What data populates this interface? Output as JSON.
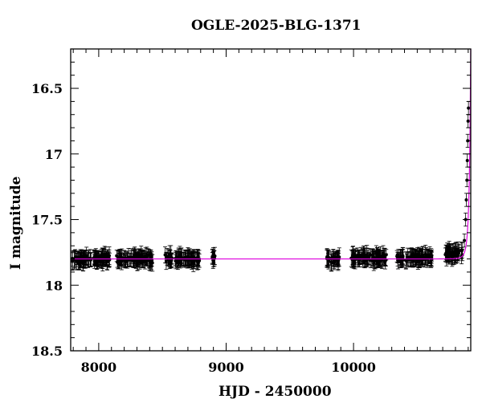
{
  "chart_data": {
    "type": "scatter",
    "title": "OGLE-2025-BLG-1371",
    "xlabel": "HJD - 2450000",
    "ylabel": "I magnitude",
    "xlim": [
      7780,
      10920
    ],
    "ylim": [
      18.5,
      16.2
    ],
    "y_inverted": true,
    "x_ticks": [
      8000,
      9000,
      10000
    ],
    "y_ticks": [
      16.5,
      17,
      17.5,
      18,
      18.5
    ],
    "y_tick_labels": [
      "16.5",
      "17",
      "17.5",
      "18",
      "18.5"
    ],
    "grid": false,
    "seasons": [
      {
        "x": [
          7790,
          8090
        ],
        "mean_mag": 17.8
      },
      {
        "x": [
          8140,
          8430
        ],
        "mean_mag": 17.8
      },
      {
        "x": [
          8520,
          8790
        ],
        "mean_mag": 17.8
      },
      {
        "x": [
          8890,
          8920
        ],
        "mean_mag": 17.79
      },
      {
        "x": [
          9790,
          9890
        ],
        "mean_mag": 17.8
      },
      {
        "x": [
          9980,
          10260
        ],
        "mean_mag": 17.79
      },
      {
        "x": [
          10340,
          10620
        ],
        "mean_mag": 17.79
      },
      {
        "x": [
          10720,
          10860
        ],
        "mean_mag": 17.76
      }
    ],
    "rise_points": [
      {
        "x": 10870,
        "y": 17.66
      },
      {
        "x": 10880,
        "y": 17.5
      },
      {
        "x": 10885,
        "y": 17.35
      },
      {
        "x": 10890,
        "y": 17.2
      },
      {
        "x": 10893,
        "y": 17.05
      },
      {
        "x": 10896,
        "y": 16.9
      },
      {
        "x": 10899,
        "y": 16.75
      },
      {
        "x": 10902,
        "y": 16.65
      }
    ],
    "model": {
      "baseline": 17.8,
      "t0": 10925,
      "u0": 0.06,
      "tE": 25,
      "color": "#dd00dd"
    }
  }
}
